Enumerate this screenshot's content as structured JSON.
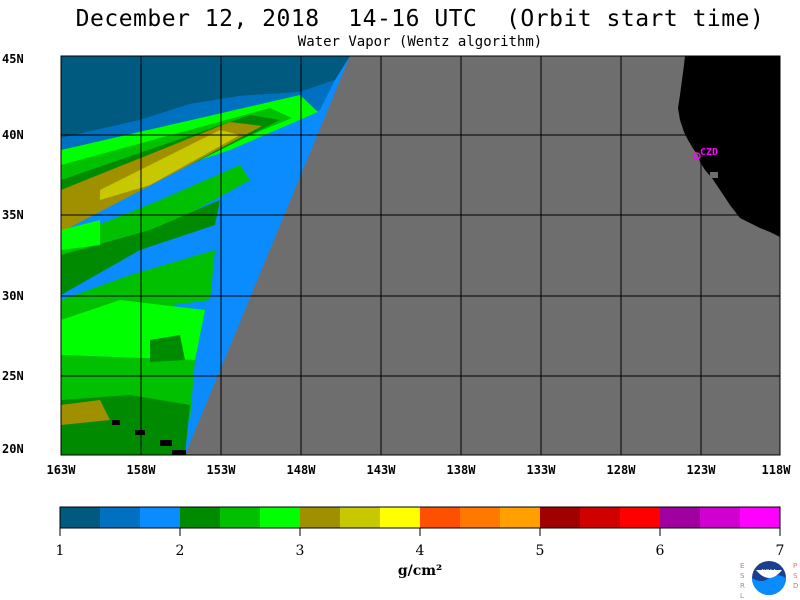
{
  "header": {
    "title": "December 12, 2018  14-16 UTC  (Orbit start time)",
    "subtitle": "Water Vapor (Wentz algorithm)"
  },
  "map": {
    "lat_labels": [
      "45N",
      "40N",
      "35N",
      "30N",
      "25N",
      "20N"
    ],
    "lon_labels": [
      "163W",
      "158W",
      "153W",
      "148W",
      "143W",
      "138W",
      "133W",
      "128W",
      "123W",
      "118W"
    ],
    "colors": {
      "nodata": "#6e6e6e",
      "land": "#000000",
      "grid": "#000000",
      "station": "#ff00ff"
    },
    "station_label": "CZD"
  },
  "colorbar": {
    "tick_labels": [
      "1",
      "2",
      "3",
      "4",
      "5",
      "6",
      "7"
    ],
    "units": "g/cm²",
    "colors": [
      "#005a7f",
      "#0070c0",
      "#0a8cff",
      "#008a00",
      "#00c000",
      "#00ff00",
      "#a09000",
      "#c8c800",
      "#ffff00",
      "#ff5000",
      "#ff7800",
      "#ffa000",
      "#a00000",
      "#d00000",
      "#ff0000",
      "#a000a0",
      "#d000d0",
      "#ff00ff"
    ]
  },
  "logo": {
    "left_text": "ESRL",
    "right_text": "PSD",
    "center_text": "NOAA"
  }
}
